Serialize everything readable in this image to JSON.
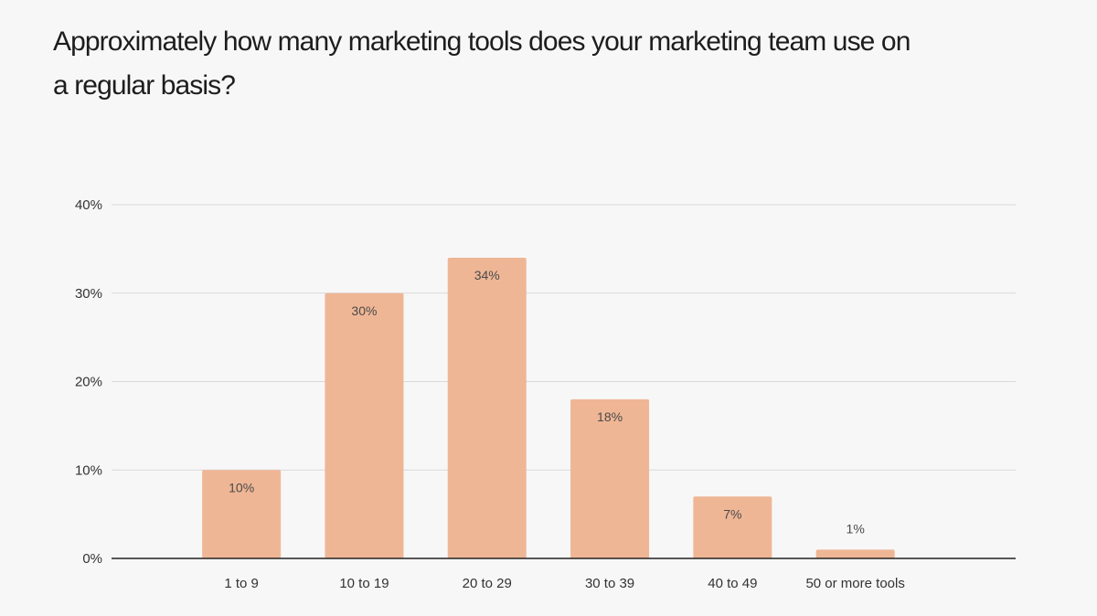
{
  "chart_data": {
    "type": "bar",
    "title": "Approximately how many marketing tools does your marketing team use on a regular basis?",
    "xlabel": "",
    "ylabel": "",
    "categories": [
      "1 to 9",
      "10 to 19",
      "20 to 29",
      "30 to 39",
      "40 to 49",
      "50 or more tools"
    ],
    "values": [
      10,
      30,
      34,
      18,
      7,
      1
    ],
    "data_labels": [
      "10%",
      "30%",
      "34%",
      "18%",
      "7%",
      "1%"
    ],
    "y_ticks": [
      0,
      10,
      20,
      30,
      40
    ],
    "y_tick_labels": [
      "0%",
      "10%",
      "20%",
      "30%",
      "40%"
    ],
    "ylim": [
      0,
      40
    ],
    "grid": true,
    "legend": "none",
    "colors": {
      "bar": "#efb695",
      "gridline": "#d9d9d9",
      "baseline": "#222222",
      "background": "#f7f7f7",
      "text": "#333333"
    }
  }
}
